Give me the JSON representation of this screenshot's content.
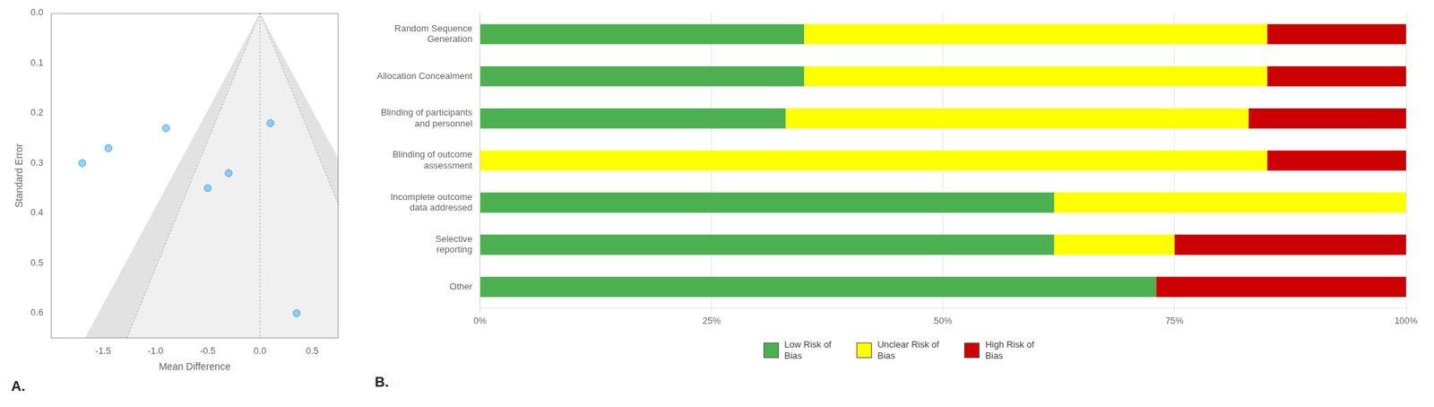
{
  "chart_data": [
    {
      "type": "scatter",
      "title": "A.",
      "x_label": "Mean Difference",
      "y_label": "Standard Error",
      "x": [
        -1.7,
        -1.45,
        -0.9,
        -0.5,
        -0.3,
        0.1,
        0.35
      ],
      "values": [
        0.3,
        0.27,
        0.23,
        0.35,
        0.32,
        0.22,
        0.6
      ],
      "mean_effect": 0.0,
      "xlim": [
        -2.0,
        0.75
      ],
      "xticks": [
        -1.5,
        {
          "value": -1.0,
          "label": "-1.0"
        },
        -0.5,
        {
          "value": 0.0,
          "label": "0.0"
        },
        0.5
      ],
      "ylim": [
        0.65,
        0.0
      ],
      "yticks": [
        {
          "value": 0.0,
          "label": "0.0"
        },
        0.1,
        0.2,
        0.3,
        0.4,
        0.5,
        0.6
      ],
      "grid": false
    },
    {
      "type": "bar",
      "orientation": "horizontal",
      "stacked": true,
      "title": "B.",
      "categories": [
        "Random Sequence\nGeneration",
        "Allocation Concealment",
        "Blinding of participants\nand personnel",
        "Blinding of outcome\nassessment",
        "Incomplete outcome\ndata addressed",
        "Selective\nreporting",
        "Other"
      ],
      "series": [
        {
          "name": "Low Risk of\nBias",
          "color": "#4caf50",
          "values": [
            35,
            35,
            33,
            0,
            62,
            62,
            73
          ]
        },
        {
          "name": "Unclear Risk of\nBias",
          "color": "#ffff00",
          "values": [
            50,
            50,
            50,
            85,
            38,
            13,
            0
          ]
        },
        {
          "name": "High Risk of\nBias",
          "color": "#cc0000",
          "values": [
            15,
            15,
            17,
            15,
            0,
            25,
            27
          ]
        }
      ],
      "xlim": [
        0,
        100
      ],
      "xticks": [
        {
          "value": 0,
          "label": "0%"
        },
        {
          "value": 25,
          "label": "25%"
        },
        {
          "value": 50,
          "label": "50%"
        },
        {
          "value": 75,
          "label": "75%"
        },
        {
          "value": 100,
          "label": "100%"
        }
      ],
      "grid": true,
      "legend": "bottom"
    }
  ]
}
